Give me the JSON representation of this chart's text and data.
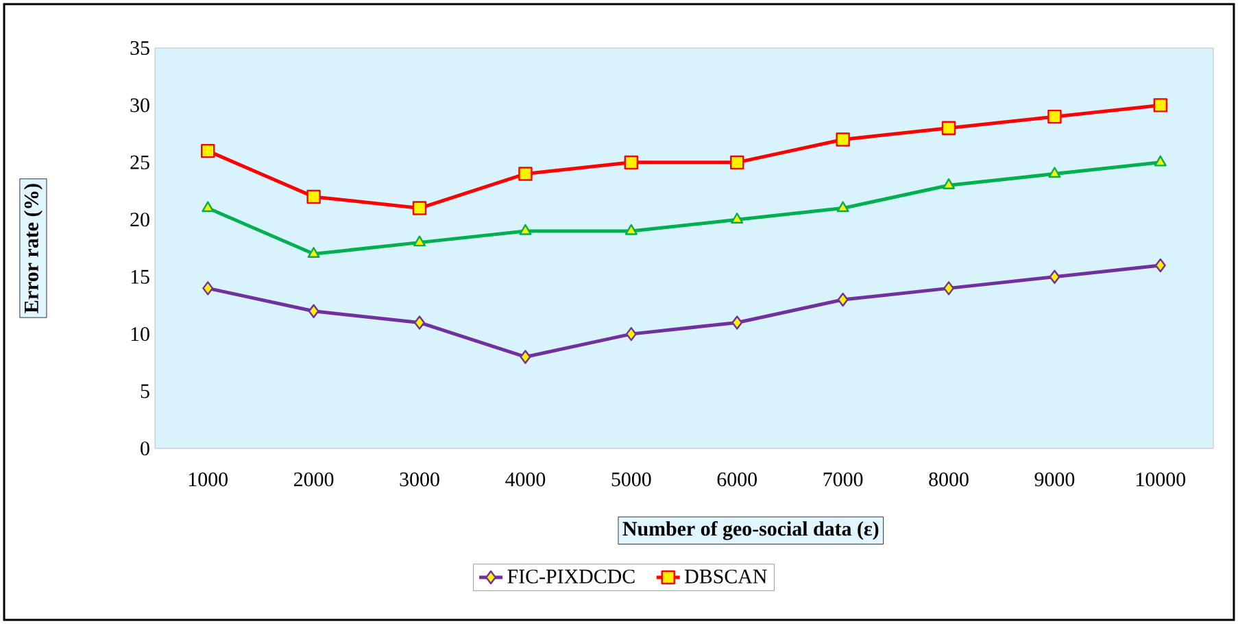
{
  "chart_data": {
    "type": "line",
    "xlabel": "Number of geo-social data (ε)",
    "ylabel": "Error rate (%)",
    "categories": [
      "1000",
      "2000",
      "3000",
      "4000",
      "5000",
      "6000",
      "7000",
      "8000",
      "9000",
      "10000"
    ],
    "ylim": [
      0,
      35
    ],
    "yticks": [
      0,
      5,
      10,
      15,
      20,
      25,
      30,
      35
    ],
    "grid": false,
    "legend": "bottom",
    "series": [
      {
        "name": "FIC-PIXDCDC",
        "color": "#7030a0",
        "marker": "diamond",
        "values": [
          14,
          12,
          11,
          8,
          10,
          11,
          13,
          14,
          15,
          16
        ]
      },
      {
        "name": "DBSCAN",
        "color": "#ff0000",
        "marker": "square",
        "values": [
          26,
          22,
          21,
          24,
          25,
          25,
          27,
          28,
          29,
          30
        ]
      },
      {
        "color": "#00b050",
        "marker": "triangle",
        "values": [
          21,
          17,
          18,
          19,
          19,
          20,
          21,
          23,
          24,
          25
        ]
      }
    ]
  }
}
